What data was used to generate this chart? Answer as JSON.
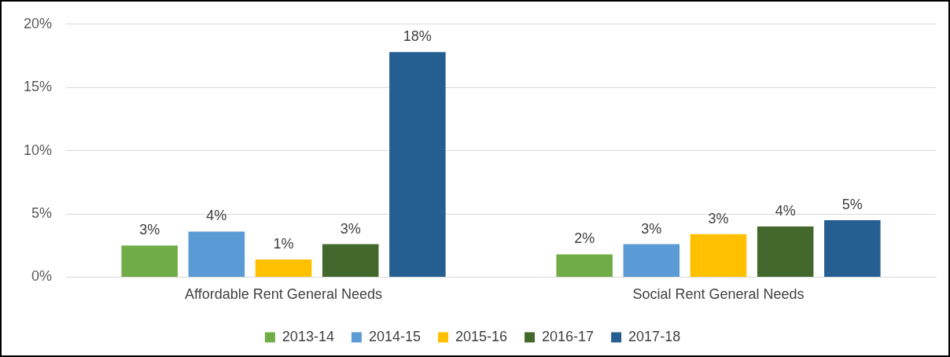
{
  "chart_data": {
    "type": "bar",
    "categories": [
      "Affordable Rent General Needs",
      "Social Rent General Needs"
    ],
    "series": [
      {
        "name": "2013-14",
        "color": "#70ad47",
        "values": [
          2.5,
          1.8
        ],
        "value_labels": [
          "3%",
          "2%"
        ]
      },
      {
        "name": "2014-15",
        "color": "#5b9bd5",
        "values": [
          3.6,
          2.6
        ],
        "value_labels": [
          "4%",
          "3%"
        ]
      },
      {
        "name": "2015-16",
        "color": "#ffc000",
        "values": [
          1.4,
          3.4
        ],
        "value_labels": [
          "1%",
          "3%"
        ]
      },
      {
        "name": "2016-17",
        "color": "#43682b",
        "values": [
          2.6,
          4.0
        ],
        "value_labels": [
          "3%",
          "4%"
        ]
      },
      {
        "name": "2017-18",
        "color": "#255e91",
        "values": [
          17.8,
          4.5
        ],
        "value_labels": [
          "18%",
          "5%"
        ]
      }
    ],
    "ylim": [
      0,
      20
    ],
    "yticks": [
      {
        "value": 0,
        "label": "0%"
      },
      {
        "value": 5,
        "label": "5%"
      },
      {
        "value": 10,
        "label": "10%"
      },
      {
        "value": 15,
        "label": "15%"
      },
      {
        "value": 20,
        "label": "20%"
      }
    ],
    "grid": "y",
    "legend": "bottom"
  }
}
